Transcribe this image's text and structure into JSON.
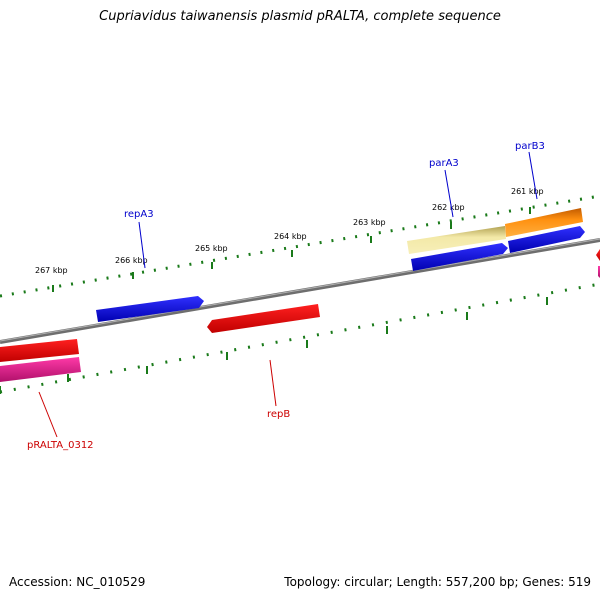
{
  "title": "Cupriavidus taiwanensis plasmid pRALTA, complete sequence",
  "footer": {
    "accession": "Accession: NC_010529",
    "summary": "Topology: circular; Length: 557,200 bp; Genes: 519"
  },
  "ticks": [
    {
      "label": "267 kbp"
    },
    {
      "label": "266 kbp"
    },
    {
      "label": "265 kbp"
    },
    {
      "label": "264 kbp"
    },
    {
      "label": "263 kbp"
    },
    {
      "label": "262 kbp"
    },
    {
      "label": "261 kbp"
    }
  ],
  "genes": [
    {
      "name": "repA3",
      "label_color": "#0000cc"
    },
    {
      "name": "parA3",
      "label_color": "#0000cc"
    },
    {
      "name": "parB3",
      "label_color": "#0000cc"
    },
    {
      "name": "repB",
      "label_color": "#cc0000"
    },
    {
      "name": "pRALTA_0312",
      "label_color": "#cc0000"
    }
  ],
  "colors": {
    "backbone": "#808080",
    "tick": "#1a7a1a",
    "cds_forward": "#0000ee",
    "cds_reverse": "#ee0000",
    "trna_like": "#dd1188",
    "feature_pale": "#eee08a",
    "feature_orange": "#ff8c00"
  }
}
